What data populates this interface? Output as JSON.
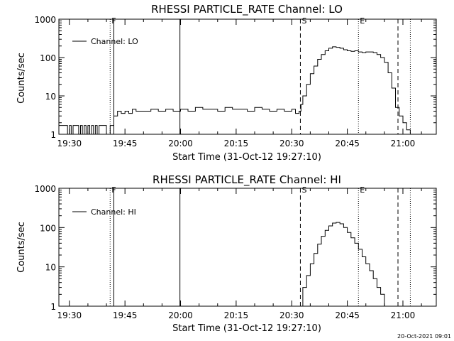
{
  "chart_data": [
    {
      "type": "line",
      "title": "RHESSI PARTICLE_RATE Channel: LO",
      "xlabel": "Start Time (31-Oct-12 19:27:10)",
      "ylabel": "Counts/sec",
      "yscale": "log",
      "ylim": [
        1,
        1000
      ],
      "xlim": [
        "19:27:10",
        "21:09:00"
      ],
      "x_tick_labels": [
        "19:30",
        "19:45",
        "20:00",
        "20:15",
        "20:30",
        "20:45",
        "21:00"
      ],
      "y_tick_labels": [
        "1",
        "10",
        "100",
        "1000"
      ],
      "legend": {
        "position": "top-left",
        "label": "Channel: LO"
      },
      "markers": [
        {
          "label": "F",
          "time": "19:41:00",
          "style": "dotted"
        },
        {
          "label": "",
          "time": "19:42:00",
          "style": "solid"
        },
        {
          "label": "",
          "time": "19:59:50",
          "style": "solid"
        },
        {
          "label": "S",
          "time": "20:32:20",
          "style": "dashed"
        },
        {
          "label": "E",
          "time": "20:48:00",
          "style": "dotted"
        },
        {
          "label": "",
          "time": "20:58:40",
          "style": "dashed"
        },
        {
          "label": "",
          "time": "21:02:00",
          "style": "dotted"
        }
      ],
      "series": [
        {
          "x": [
            "19:27:10",
            "19:28:00",
            "19:29:00",
            "19:29:30",
            "19:30:00",
            "19:30:30",
            "19:31:00",
            "19:32:00",
            "19:32:30",
            "19:33:00",
            "19:33:30",
            "19:34:00",
            "19:34:30",
            "19:35:00",
            "19:35:30",
            "19:36:00",
            "19:36:30",
            "19:37:00",
            "19:37:30",
            "19:38:00",
            "19:39:00",
            "19:40:00",
            "19:41:00",
            "19:42:00",
            "19:43:00",
            "19:44:00",
            "19:45:00",
            "19:46:00",
            "19:47:00",
            "19:48:00",
            "19:49:00",
            "19:50:00",
            "19:52:00",
            "19:54:00",
            "19:56:00",
            "19:58:00",
            "20:00:00",
            "20:02:00",
            "20:04:00",
            "20:06:00",
            "20:08:00",
            "20:10:00",
            "20:12:00",
            "20:14:00",
            "20:16:00",
            "20:18:00",
            "20:20:00",
            "20:22:00",
            "20:24:00",
            "20:26:00",
            "20:28:00",
            "20:30:00",
            "20:31:00",
            "20:32:00",
            "20:32:30",
            "20:33:00",
            "20:34:00",
            "20:35:00",
            "20:36:00",
            "20:37:00",
            "20:38:00",
            "20:39:00",
            "20:40:00",
            "20:41:00",
            "20:42:00",
            "20:43:00",
            "20:44:00",
            "20:45:00",
            "20:46:00",
            "20:47:00",
            "20:48:00",
            "20:49:00",
            "20:50:00",
            "20:51:00",
            "20:52:00",
            "20:53:00",
            "20:54:00",
            "20:55:00",
            "20:56:00",
            "20:57:00",
            "20:58:00",
            "20:59:00",
            "21:00:00",
            "21:01:00",
            "21:02:00"
          ],
          "y": [
            1.7,
            1.7,
            1.7,
            1.0,
            1.7,
            1.0,
            1.7,
            1.7,
            1.0,
            1.7,
            1.0,
            1.7,
            1.0,
            1.7,
            1.0,
            1.7,
            1.0,
            1.7,
            1.0,
            1.7,
            1.7,
            1.0,
            1.7,
            3.0,
            4.0,
            3.5,
            4.0,
            3.5,
            4.5,
            4.0,
            4.0,
            4.0,
            4.5,
            4.0,
            4.5,
            4.0,
            4.5,
            4.0,
            5.0,
            4.5,
            4.5,
            4.0,
            5.0,
            4.5,
            4.5,
            4.0,
            5.0,
            4.5,
            4.0,
            4.5,
            4.0,
            4.5,
            3.5,
            4.0,
            6,
            10,
            20,
            38,
            60,
            90,
            120,
            150,
            175,
            190,
            185,
            175,
            160,
            150,
            145,
            150,
            140,
            135,
            140,
            140,
            135,
            120,
            100,
            75,
            40,
            16,
            5,
            3,
            2,
            1.3,
            1.0
          ]
        }
      ]
    },
    {
      "type": "line",
      "title": "RHESSI PARTICLE_RATE Channel: HI",
      "xlabel": "Start Time (31-Oct-12 19:27:10)",
      "ylabel": "Counts/sec",
      "yscale": "log",
      "ylim": [
        1,
        1000
      ],
      "xlim": [
        "19:27:10",
        "21:09:00"
      ],
      "x_tick_labels": [
        "19:30",
        "19:45",
        "20:00",
        "20:15",
        "20:30",
        "20:45",
        "21:00"
      ],
      "y_tick_labels": [
        "1",
        "10",
        "100",
        "1000"
      ],
      "legend": {
        "position": "top-left",
        "label": "Channel: HI"
      },
      "markers": [
        {
          "label": "F",
          "time": "19:41:00",
          "style": "dotted"
        },
        {
          "label": "",
          "time": "19:42:00",
          "style": "solid"
        },
        {
          "label": "",
          "time": "19:59:50",
          "style": "solid"
        },
        {
          "label": "S",
          "time": "20:32:20",
          "style": "dashed"
        },
        {
          "label": "E",
          "time": "20:48:00",
          "style": "dotted"
        },
        {
          "label": "",
          "time": "20:58:40",
          "style": "dashed"
        },
        {
          "label": "",
          "time": "21:02:00",
          "style": "dotted"
        }
      ],
      "series": [
        {
          "x": [
            "20:32:20",
            "20:33:00",
            "20:34:00",
            "20:35:00",
            "20:36:00",
            "20:37:00",
            "20:38:00",
            "20:39:00",
            "20:40:00",
            "20:41:00",
            "20:42:00",
            "20:43:00",
            "20:44:00",
            "20:45:00",
            "20:46:00",
            "20:47:00",
            "20:48:00",
            "20:49:00",
            "20:50:00",
            "20:51:00",
            "20:52:00",
            "20:53:00",
            "20:54:00",
            "20:55:00"
          ],
          "y": [
            1.0,
            3,
            6,
            12,
            22,
            38,
            60,
            85,
            110,
            130,
            135,
            125,
            100,
            75,
            55,
            40,
            28,
            18,
            12,
            8,
            5,
            3,
            2,
            1.0
          ]
        }
      ]
    }
  ],
  "footer": {
    "timestamp": "20-Oct-2021 09:01"
  }
}
